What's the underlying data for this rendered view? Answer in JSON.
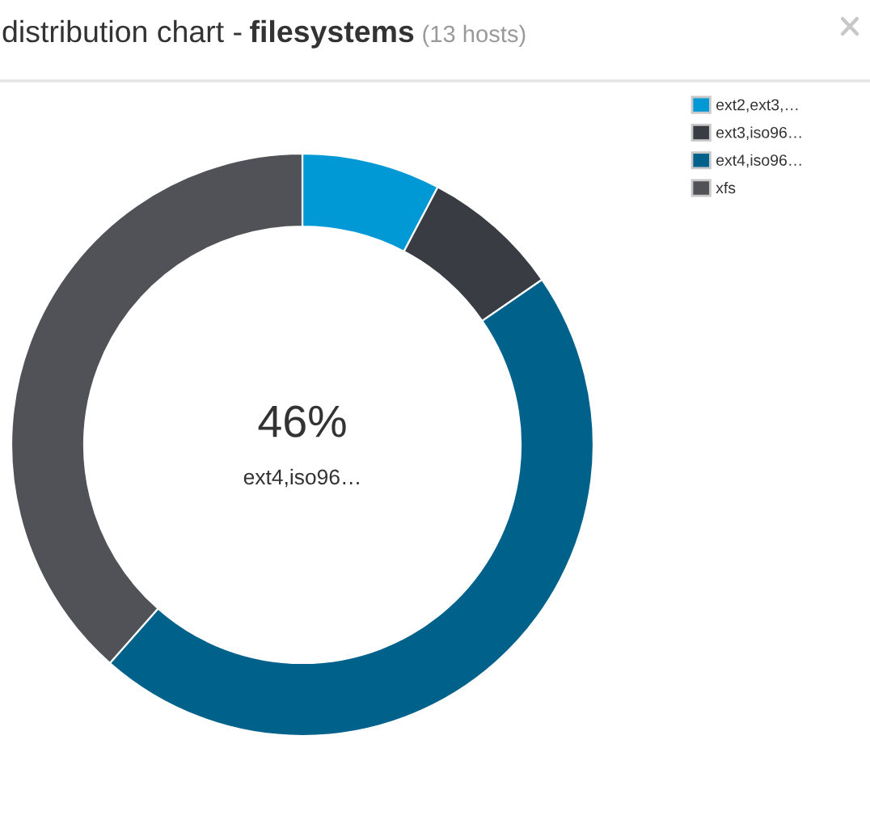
{
  "chart_data": {
    "type": "donut",
    "title": "distribution chart - filesystems",
    "subtitle": "(13 hosts)",
    "categories": [
      "ext2,ext3,…",
      "ext3,iso96…",
      "ext4,iso96…",
      "xfs"
    ],
    "values": [
      7.7,
      7.7,
      46.1,
      38.5
    ],
    "colors": [
      "#0099d6",
      "#393c43",
      "#00628b",
      "#505257"
    ],
    "value_labels": [
      null,
      null,
      "46%",
      null
    ],
    "legend": "top right"
  }
}
